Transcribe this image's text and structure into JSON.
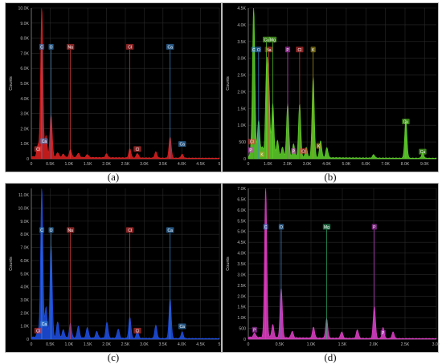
{
  "chart_data": [
    {
      "type": "line",
      "caption": "(a)",
      "series": [
        {
          "color": "#e02020"
        }
      ],
      "ylabel": "Counts",
      "ylim": [
        0,
        10000
      ],
      "xlim": [
        0,
        5.0
      ],
      "yticks": [
        "0",
        "1.0K",
        "2.0K",
        "3.0K",
        "4.0K",
        "5.0K",
        "6.0K",
        "7.0K",
        "8.0K",
        "9.0K",
        "10.0K"
      ],
      "yticks_values": [
        0,
        1000,
        2000,
        3000,
        4000,
        5000,
        6000,
        7000,
        8000,
        9000,
        10000
      ],
      "xticks": [
        "0",
        "0.5K",
        "1.0K",
        "1.5K",
        "2.0K",
        "2.5K",
        "3.0K",
        "3.5K",
        "4.0K",
        "4.5K",
        "5"
      ],
      "xticks_values": [
        0,
        0.5,
        1.0,
        1.5,
        2.0,
        2.5,
        3.0,
        3.5,
        4.0,
        4.5,
        5.0
      ],
      "peaks": [
        [
          0.18,
          800
        ],
        [
          0.277,
          9900
        ],
        [
          0.39,
          1400
        ],
        [
          0.525,
          2800
        ],
        [
          0.7,
          300
        ],
        [
          0.85,
          200
        ],
        [
          1.04,
          500
        ],
        [
          1.25,
          280
        ],
        [
          1.49,
          200
        ],
        [
          2.0,
          250
        ],
        [
          2.62,
          600
        ],
        [
          2.82,
          300
        ],
        [
          3.31,
          400
        ],
        [
          3.69,
          1400
        ],
        [
          4.01,
          250
        ]
      ],
      "markers": [
        {
          "label": "C",
          "x": 0.277,
          "y_label": 7400,
          "color": "#3b8cd6"
        },
        {
          "label": "O",
          "x": 0.525,
          "y_label": 7400,
          "color": "#3b8cd6"
        },
        {
          "label": "Na",
          "x": 1.04,
          "y_label": 7400,
          "color": "#e23b3b"
        },
        {
          "label": "Cl",
          "x": 2.62,
          "y_label": 7400,
          "color": "#e23b3b"
        },
        {
          "label": "Ca",
          "x": 3.69,
          "y_label": 7400,
          "color": "#3b8cd6"
        }
      ],
      "small_labels": [
        {
          "label": "Ca",
          "x": 0.34,
          "y": 1150,
          "color": "#3b8cd6"
        },
        {
          "label": "Cl",
          "x": 0.18,
          "y": 620,
          "color": "#e23b3b"
        },
        {
          "label": "Cl",
          "x": 2.82,
          "y": 620,
          "color": "#e23b3b"
        },
        {
          "label": "Ca",
          "x": 4.01,
          "y": 950,
          "color": "#3b8cd6"
        }
      ]
    },
    {
      "type": "line",
      "caption": "(b)",
      "series": [
        {
          "color": "#5fd42a"
        }
      ],
      "ylabel": "Counts",
      "ylim": [
        0,
        4500
      ],
      "xlim": [
        0,
        9.6
      ],
      "yticks": [
        "0",
        "500",
        "1.0K",
        "1.5K",
        "2.0K",
        "2.5K",
        "3.0K",
        "3.5K",
        "4.0K",
        "4.5K"
      ],
      "yticks_values": [
        0,
        500,
        1000,
        1500,
        2000,
        2500,
        3000,
        3500,
        4000,
        4500
      ],
      "xticks": [
        "0",
        "1.0K",
        "2.0K",
        "3.0K",
        "4.0K",
        "5.0K",
        "6.0K",
        "7.0K",
        "8.0K",
        "9.0K"
      ],
      "xticks_values": [
        0,
        1,
        2,
        3,
        4,
        5,
        6,
        7,
        8,
        9
      ],
      "peaks": [
        [
          0.18,
          400
        ],
        [
          0.277,
          4400
        ],
        [
          0.525,
          1100
        ],
        [
          0.71,
          300
        ],
        [
          0.93,
          2500
        ],
        [
          1.04,
          2100
        ],
        [
          1.25,
          1600
        ],
        [
          1.49,
          500
        ],
        [
          1.74,
          300
        ],
        [
          2.01,
          1600
        ],
        [
          2.31,
          400
        ],
        [
          2.62,
          1600
        ],
        [
          2.96,
          300
        ],
        [
          3.31,
          2400
        ],
        [
          3.69,
          500
        ],
        [
          4.01,
          300
        ],
        [
          6.4,
          100
        ],
        [
          8.04,
          1150
        ],
        [
          8.9,
          150
        ]
      ],
      "markers": [
        {
          "label": "C",
          "x": 0.277,
          "y_label": 3250,
          "color": "#3b8cd6"
        },
        {
          "label": "O",
          "x": 0.525,
          "y_label": 3250,
          "color": "#3b8cd6"
        },
        {
          "label": "Na",
          "x": 1.04,
          "y_label": 3250,
          "color": "#e23b3b"
        },
        {
          "label": "Cu",
          "x": 0.93,
          "y_label": 3550,
          "color": "#5fd42a"
        },
        {
          "label": "Mg",
          "x": 1.25,
          "y_label": 3550,
          "color": "#5fd42a"
        },
        {
          "label": "P",
          "x": 2.01,
          "y_label": 3250,
          "color": "#d63bd6"
        },
        {
          "label": "Cl",
          "x": 2.62,
          "y_label": 3250,
          "color": "#e23b3b"
        },
        {
          "label": "K",
          "x": 3.31,
          "y_label": 3250,
          "color": "#b0a020"
        },
        {
          "label": "Cu",
          "x": 8.04,
          "y_label": 1100,
          "color": "#5fd42a"
        }
      ],
      "small_labels": [
        {
          "label": "Cl",
          "x": 0.18,
          "y": 500,
          "color": "#e23b3b"
        },
        {
          "label": "P",
          "x": 0.12,
          "y": 250,
          "color": "#d63bd6"
        },
        {
          "label": "K",
          "x": 0.7,
          "y": 120,
          "color": "#b0a020"
        },
        {
          "label": "P",
          "x": 2.31,
          "y": 220,
          "color": "#d63bd6"
        },
        {
          "label": "Cl",
          "x": 2.82,
          "y": 220,
          "color": "#e23b3b"
        },
        {
          "label": "K",
          "x": 3.59,
          "y": 370,
          "color": "#b0a020"
        },
        {
          "label": "Cu",
          "x": 8.9,
          "y": 200,
          "color": "#5fd42a"
        }
      ]
    },
    {
      "type": "line",
      "caption": "(c)",
      "series": [
        {
          "color": "#1f50e6"
        }
      ],
      "ylabel": "Counts",
      "ylim": [
        0,
        11500
      ],
      "xlim": [
        0,
        5.0
      ],
      "yticks": [
        "0",
        "1.0K",
        "2.0K",
        "3.0K",
        "4.0K",
        "5.0K",
        "6.0K",
        "7.0K",
        "8.0K",
        "9.0K",
        "10.0K",
        "11.0K"
      ],
      "yticks_values": [
        0,
        1000,
        2000,
        3000,
        4000,
        5000,
        6000,
        7000,
        8000,
        9000,
        10000,
        11000
      ],
      "xticks": [
        "0",
        "0.5K",
        "1.0K",
        "1.5K",
        "2.0K",
        "2.5K",
        "3.0K",
        "3.5K",
        "4.0K",
        "4.5K",
        "5"
      ],
      "xticks_values": [
        0,
        0.5,
        1.0,
        1.5,
        2.0,
        2.5,
        3.0,
        3.5,
        4.0,
        4.5,
        5.0
      ],
      "peaks": [
        [
          0.18,
          500
        ],
        [
          0.277,
          11400
        ],
        [
          0.39,
          2300
        ],
        [
          0.525,
          7000
        ],
        [
          0.7,
          1200
        ],
        [
          0.85,
          600
        ],
        [
          1.04,
          1100
        ],
        [
          1.25,
          900
        ],
        [
          1.49,
          800
        ],
        [
          1.74,
          500
        ],
        [
          2.01,
          1200
        ],
        [
          2.31,
          700
        ],
        [
          2.62,
          1600
        ],
        [
          2.82,
          500
        ],
        [
          3.31,
          1000
        ],
        [
          3.69,
          3000
        ],
        [
          4.01,
          500
        ]
      ],
      "markers": [
        {
          "label": "C",
          "x": 0.277,
          "y_label": 8300,
          "color": "#3b8cd6"
        },
        {
          "label": "O",
          "x": 0.525,
          "y_label": 8300,
          "color": "#3b8cd6"
        },
        {
          "label": "Na",
          "x": 1.04,
          "y_label": 8300,
          "color": "#e23b3b"
        },
        {
          "label": "Cl",
          "x": 2.62,
          "y_label": 8300,
          "color": "#e23b3b"
        },
        {
          "label": "Ca",
          "x": 3.69,
          "y_label": 8300,
          "color": "#3b8cd6"
        }
      ],
      "small_labels": [
        {
          "label": "Ca",
          "x": 0.34,
          "y": 1150,
          "color": "#3b8cd6"
        },
        {
          "label": "Cl",
          "x": 0.18,
          "y": 620,
          "color": "#e23b3b"
        },
        {
          "label": "Cl",
          "x": 2.82,
          "y": 620,
          "color": "#e23b3b"
        },
        {
          "label": "Ca",
          "x": 4.01,
          "y": 950,
          "color": "#3b8cd6"
        }
      ]
    },
    {
      "type": "line",
      "caption": "(d)",
      "series": [
        {
          "color": "#e040c8"
        }
      ],
      "ylabel": "Counts",
      "ylim": [
        0,
        7000
      ],
      "xlim": [
        0,
        3.0
      ],
      "yticks": [
        "0",
        "500",
        "1.0K",
        "1.5K",
        "2.0K",
        "2.5K",
        "3.0K",
        "3.5K",
        "4.0K",
        "4.5K",
        "5.0K",
        "5.5K",
        "6.0K",
        "6.5K",
        "7.0K"
      ],
      "yticks_values": [
        0,
        500,
        1000,
        1500,
        2000,
        2500,
        3000,
        3500,
        4000,
        4500,
        5000,
        5500,
        6000,
        6500,
        7000
      ],
      "xticks": [
        "0",
        "0.5K",
        "1.0K",
        "1.5K",
        "2.0K",
        "2.5K",
        "3.0K"
      ],
      "xticks_values": [
        0,
        0.5,
        1.0,
        1.5,
        2.0,
        2.5,
        3.0
      ],
      "peaks": [
        [
          0.1,
          200
        ],
        [
          0.277,
          7000
        ],
        [
          0.39,
          600
        ],
        [
          0.525,
          2300
        ],
        [
          0.7,
          300
        ],
        [
          1.04,
          500
        ],
        [
          1.25,
          900
        ],
        [
          1.49,
          300
        ],
        [
          1.74,
          400
        ],
        [
          2.01,
          1500
        ],
        [
          2.15,
          500
        ],
        [
          2.31,
          300
        ]
      ],
      "markers": [
        {
          "label": "C",
          "x": 0.277,
          "y_label": 5200,
          "color": "#3b8cd6"
        },
        {
          "label": "O",
          "x": 0.525,
          "y_label": 5200,
          "color": "#3b8cd6"
        },
        {
          "label": "Mg",
          "x": 1.25,
          "y_label": 5200,
          "color": "#2fae6a"
        },
        {
          "label": "P",
          "x": 2.01,
          "y_label": 5200,
          "color": "#c040c8"
        }
      ],
      "small_labels": [
        {
          "label": "P",
          "x": 0.1,
          "y": 420,
          "color": "#c040c8"
        },
        {
          "label": "P",
          "x": 2.15,
          "y": 280,
          "color": "#c040c8"
        }
      ]
    }
  ]
}
